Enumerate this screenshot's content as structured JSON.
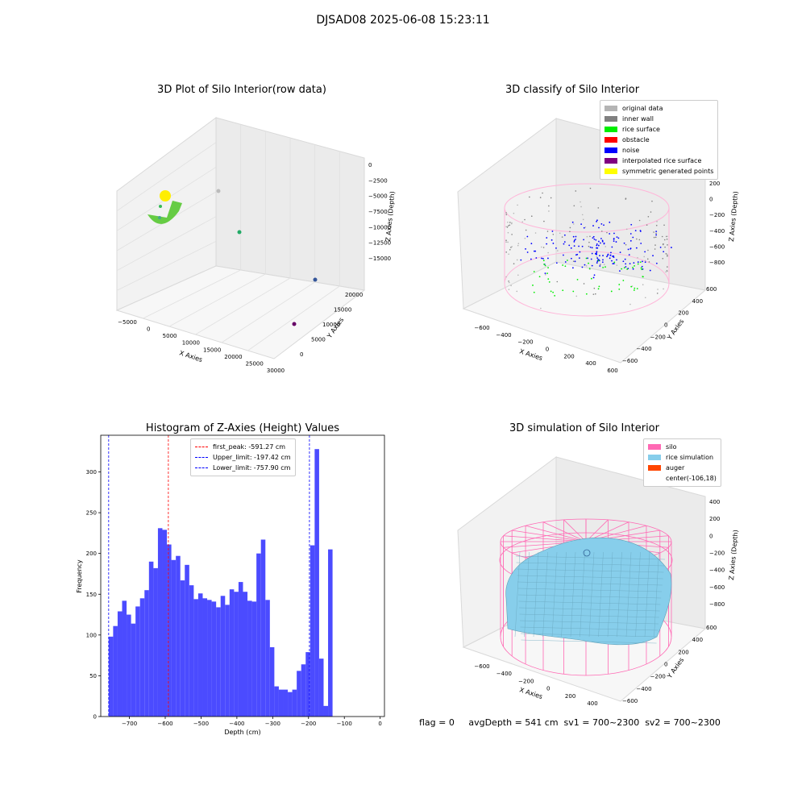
{
  "suptitle": "DJSAD08 2025-06-08 15:23:11",
  "footer": "flag = 0     avgDepth = 541 cm  sv1 = 700~2300  sv2 = 700~2300",
  "colors": {
    "original": "#b4b4b4",
    "inner_wall": "#808080",
    "rice_surface": "#00ee00",
    "obstacle": "#ff0000",
    "noise": "#0000ff",
    "interpolated": "#800080",
    "symmetric": "#ffff00",
    "hist_bar": "#4b4bff",
    "silo": "#ff69b4",
    "rice_sim": "#87ceeb",
    "auger": "#ff4500"
  },
  "chart_data": [
    {
      "id": "raw",
      "type": "scatter",
      "title": "3D Plot of Silo Interior(row data)",
      "xlabel": "X Axies",
      "ylabel": "Y Axies",
      "zlabel": "Z Axies (Depth)",
      "x_ticks": [
        "−5000",
        "0",
        "5000",
        "10000",
        "15000",
        "20000",
        "25000",
        "30000"
      ],
      "y_ticks": [
        "0",
        "5000",
        "10000",
        "15000",
        "20000"
      ],
      "z_ticks": [
        "0",
        "−2500",
        "−5000",
        "−7500",
        "−10000",
        "−12500",
        "−15000"
      ]
    },
    {
      "id": "classify",
      "type": "scatter",
      "title": "3D classify of Silo Interior",
      "xlabel": "X Axies",
      "ylabel": "Y Axies",
      "zlabel": "Z Axies (Depth)",
      "x_ticks": [
        "−600",
        "−400",
        "−200",
        "0",
        "200",
        "400",
        "600"
      ],
      "y_ticks": [
        "−600",
        "−400",
        "−200",
        "0",
        "200",
        "400",
        "600"
      ],
      "z_ticks": [
        "200",
        "0",
        "−200",
        "−400",
        "−600",
        "−800"
      ],
      "legend": [
        "original data",
        "inner wall",
        "rice surface",
        "obstacle",
        "noise",
        "interpolated rice surface",
        "symmetric generated points"
      ]
    },
    {
      "id": "hist",
      "type": "bar",
      "title": "Histogram of Z-Axies (Height) Values",
      "xlabel": "Depth (cm)",
      "ylabel": "Frequency",
      "xlim": [
        -780,
        12
      ],
      "ylim": [
        0,
        345
      ],
      "x_ticks": [
        -700,
        -600,
        -500,
        -400,
        -300,
        -200,
        -100,
        0
      ],
      "y_ticks": [
        0,
        50,
        100,
        150,
        200,
        250,
        300
      ],
      "bin_start": -757.9,
      "bin_width": 12.5,
      "values": [
        98,
        111,
        129,
        142,
        125,
        114,
        135,
        145,
        155,
        190,
        182,
        231,
        229,
        211,
        192,
        197,
        167,
        186,
        161,
        144,
        151,
        145,
        143,
        141,
        134,
        148,
        137,
        156,
        153,
        165,
        153,
        142,
        141,
        200,
        217,
        143,
        85,
        37,
        33,
        33,
        30,
        33,
        56,
        64,
        79,
        210,
        328,
        71,
        13,
        205
      ],
      "lines": [
        {
          "label": "first_peak: -591.27 cm",
          "x": -591.27,
          "color": "#ff0000"
        },
        {
          "label": "Upper_limit: -197.42 cm",
          "x": -197.42,
          "color": "#0000ff"
        },
        {
          "label": "Lower_limit: -757.90 cm",
          "x": -757.9,
          "color": "#0000ff"
        }
      ]
    },
    {
      "id": "sim",
      "type": "other",
      "title": "3D simulation of Silo Interior",
      "xlabel": "X Axies",
      "ylabel": "Y Axies",
      "zlabel": "Z Axies (Depth)",
      "x_ticks": [
        "−600",
        "−400",
        "−200",
        "0",
        "200",
        "400"
      ],
      "y_ticks": [
        "−600",
        "−400",
        "−200",
        "0",
        "200",
        "400",
        "600"
      ],
      "z_ticks": [
        "400",
        "200",
        "0",
        "−200",
        "−400",
        "−600",
        "−800"
      ],
      "legend": [
        "silo",
        "rice simulation",
        "auger",
        "center(-106,18)"
      ]
    }
  ]
}
